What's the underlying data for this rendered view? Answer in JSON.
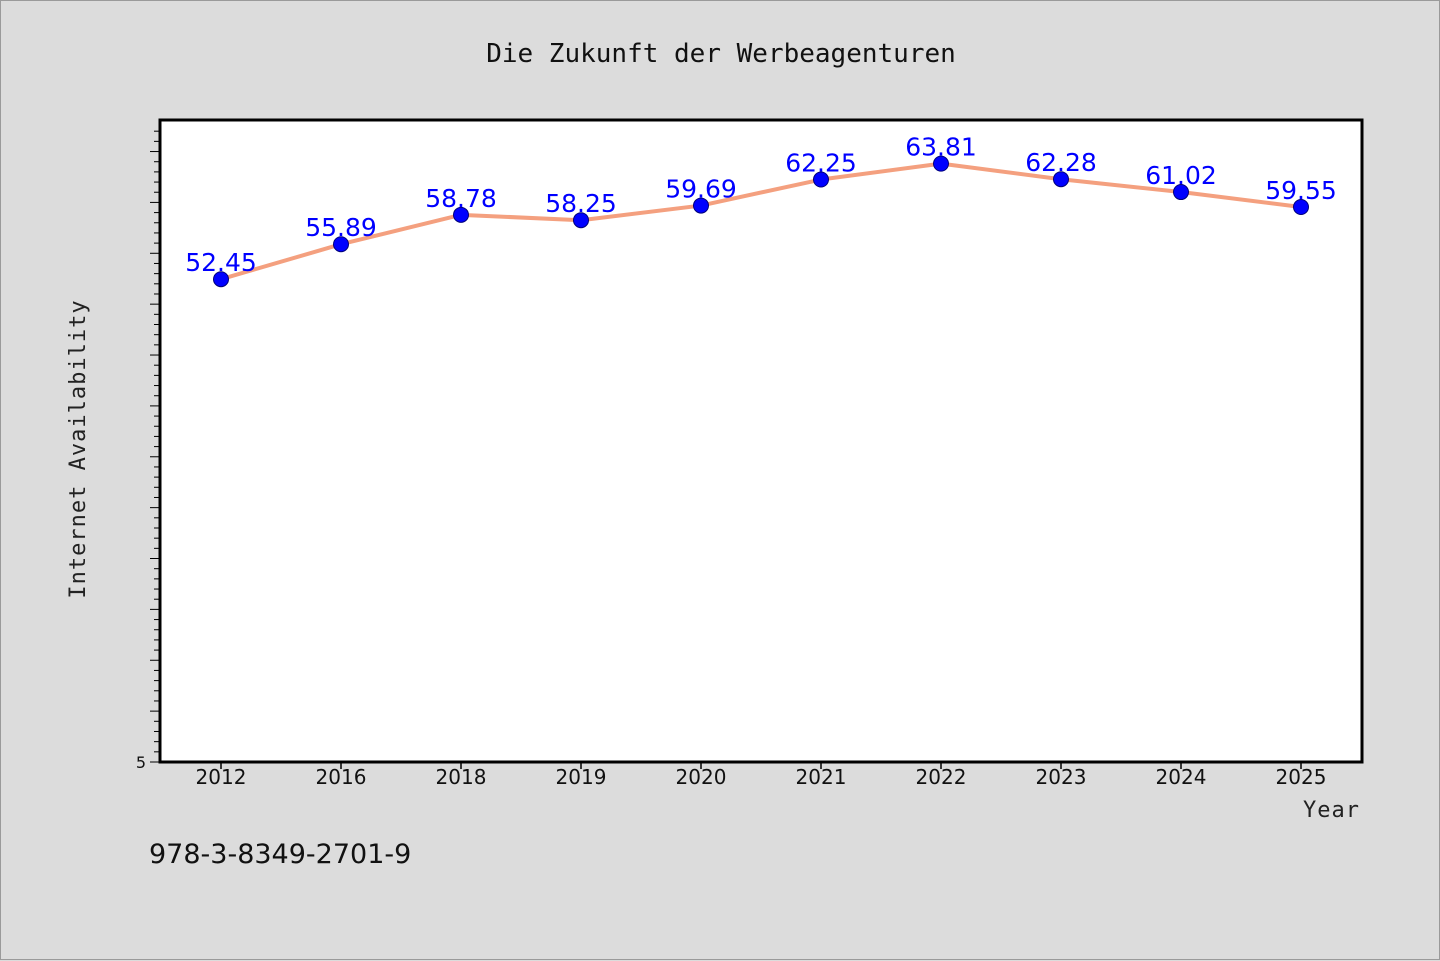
{
  "footnote": "978-3-8349-2701-9",
  "colors": {
    "background": "#dcdcdc",
    "plot_background": "#ffffff",
    "line": "#f4a07f",
    "marker": "#0000ff",
    "data_label": "#0000ff"
  },
  "chart_data": {
    "type": "line",
    "title": "Die Zukunft der Werbeagenturen",
    "xlabel": "Year",
    "ylabel": "Internet Availability",
    "categories": [
      "2012",
      "2016",
      "2018",
      "2019",
      "2020",
      "2021",
      "2022",
      "2023",
      "2024",
      "2025"
    ],
    "series": [
      {
        "values": [
          52.45,
          55.89,
          58.78,
          58.25,
          59.69,
          62.25,
          63.81,
          62.28,
          61.02,
          59.55
        ],
        "data_labels": [
          "52.45",
          "55.89",
          "58.78",
          "58.25",
          "59.69",
          "62.25",
          "63.81",
          "62.28",
          "61.02",
          "59.55"
        ]
      }
    ],
    "ylim": [
      5,
      68.1
    ],
    "y_tick_labels": [
      {
        "value": 5,
        "label": "5"
      }
    ],
    "y_minor_tick_step": 1,
    "grid": false,
    "legend": "none",
    "markers": true
  }
}
